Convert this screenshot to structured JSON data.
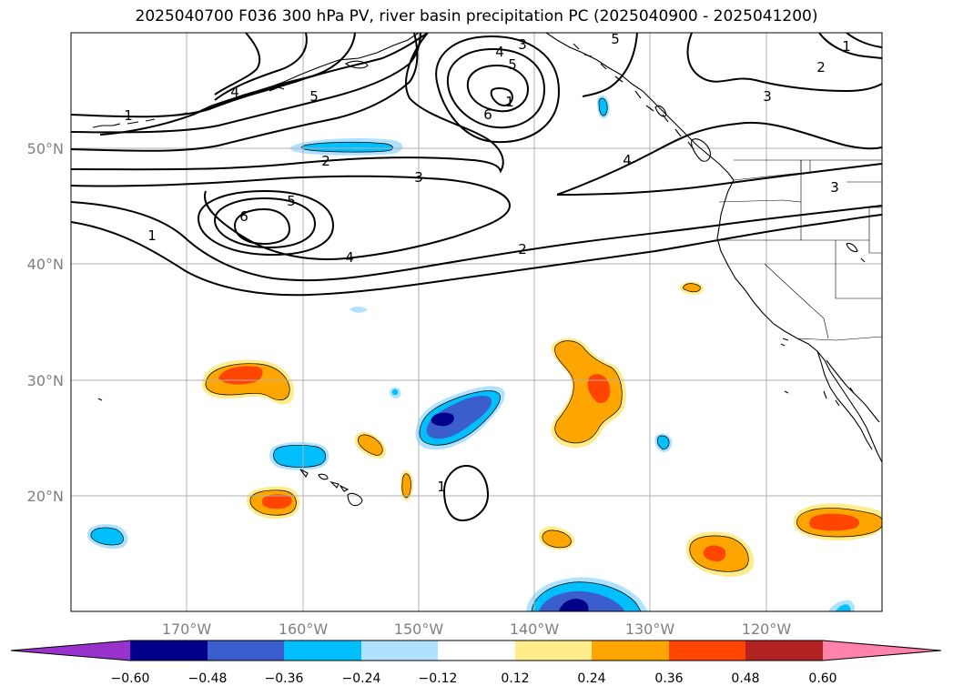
{
  "title": "2025040700 F036 300 hPa PV, river basin precipitation PC (2025040900 - 2025041200)",
  "map": {
    "projection": "plate-carree",
    "lon_range": [
      -180,
      -110
    ],
    "lat_range": [
      10,
      60
    ],
    "grid": true,
    "lon_ticks": [
      {
        "value": -170,
        "label": "170°W"
      },
      {
        "value": -160,
        "label": "160°W"
      },
      {
        "value": -150,
        "label": "150°W"
      },
      {
        "value": -140,
        "label": "140°W"
      },
      {
        "value": -130,
        "label": "130°W"
      },
      {
        "value": -120,
        "label": "120°W"
      }
    ],
    "lat_ticks": [
      {
        "value": 50,
        "label": "50°N"
      },
      {
        "value": 40,
        "label": "40°N"
      },
      {
        "value": 30,
        "label": "30°N"
      },
      {
        "value": 20,
        "label": "20°N"
      }
    ]
  },
  "colorbar": {
    "levels": [
      "−0.60",
      "−0.48",
      "−0.36",
      "−0.24",
      "−0.12",
      "0.12",
      "0.24",
      "0.36",
      "0.48",
      "0.60"
    ],
    "colors": [
      "#9932cc",
      "#00008b",
      "#3a5fcd",
      "#00bfff",
      "#b0e2ff",
      "#ffffff",
      "#ffec8b",
      "#ffa500",
      "#ff4500",
      "#b22222",
      "#ff82ab"
    ],
    "extend": "both"
  },
  "pv_contour_labels": [
    "1",
    "2",
    "3",
    "4",
    "5",
    "6"
  ],
  "precip_anomalies": [
    {
      "lon": -164,
      "lat": 30,
      "sign": "positive",
      "peak": 0.36
    },
    {
      "lon": -162,
      "lat": 19.5,
      "sign": "positive",
      "peak": 0.36
    },
    {
      "lon": -156,
      "lat": 24.5,
      "sign": "positive",
      "peak": 0.24
    },
    {
      "lon": -151,
      "lat": 20.8,
      "sign": "positive",
      "peak": 0.24
    },
    {
      "lon": -137,
      "lat": 29,
      "sign": "positive",
      "peak": 0.36
    },
    {
      "lon": -137.5,
      "lat": 16.5,
      "sign": "positive",
      "peak": 0.24
    },
    {
      "lon": -125,
      "lat": 15,
      "sign": "positive",
      "peak": 0.36
    },
    {
      "lon": -126,
      "lat": 37.8,
      "sign": "positive",
      "peak": 0.24
    },
    {
      "lon": -114.5,
      "lat": 17.5,
      "sign": "positive",
      "peak": 0.36
    },
    {
      "lon": -146,
      "lat": 26,
      "sign": "negative",
      "peak": -0.48
    },
    {
      "lon": -136,
      "lat": 11.5,
      "sign": "negative",
      "peak": -0.48
    },
    {
      "lon": -160,
      "lat": 23.5,
      "sign": "negative",
      "peak": -0.36
    },
    {
      "lon": -157,
      "lat": 50,
      "sign": "negative",
      "peak": -0.36
    },
    {
      "lon": -173,
      "lat": 16.2,
      "sign": "negative",
      "peak": -0.36
    },
    {
      "lon": -128.8,
      "lat": 24.5,
      "sign": "negative",
      "peak": -0.36
    },
    {
      "lon": -132.5,
      "lat": 54.3,
      "sign": "negative",
      "peak": -0.36
    },
    {
      "lon": -152,
      "lat": 29,
      "sign": "negative",
      "peak": -0.24
    },
    {
      "lon": -155,
      "lat": 36,
      "sign": "negative",
      "peak": -0.24
    },
    {
      "lon": -111,
      "lat": 10.5,
      "sign": "negative",
      "peak": -0.24
    }
  ]
}
